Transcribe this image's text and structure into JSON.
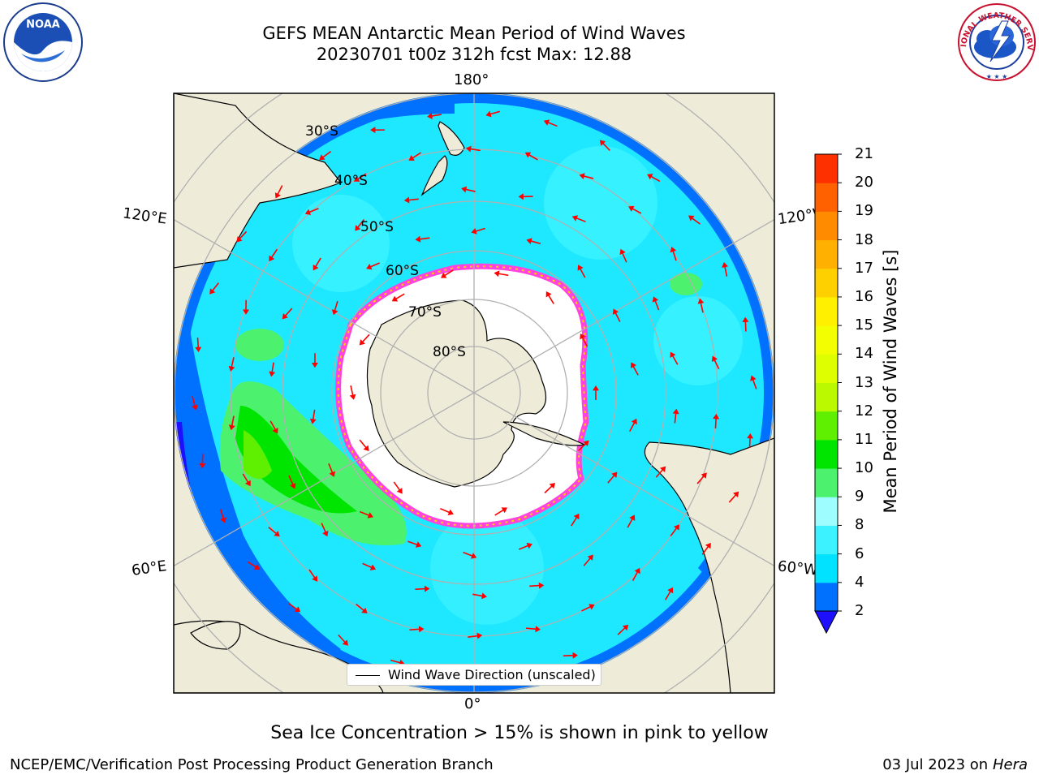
{
  "header": {
    "title_line1": "GEFS MEAN Antarctic Mean Period of Wind Waves",
    "title_line2": "20230701 t00z 312h fcst   Max: 12.88"
  },
  "logos": {
    "noaa": "NOAA",
    "noaa_ring_text": "NATIONAL OCEANIC AND ATMOSPHERIC ADMINISTRATION · U.S. DEPARTMENT OF COMMERCE",
    "nws_ring_text": "NATIONAL WEATHER SERVICE"
  },
  "map": {
    "projection": "south polar stereographic",
    "longitude_labels": {
      "top": "180°",
      "upper_left": "120°E",
      "upper_right": "120°W",
      "lower_left": "60°E",
      "lower_right": "60°W",
      "bottom": "0°"
    },
    "latitude_labels": [
      "30°S",
      "40°S",
      "50°S",
      "60°S",
      "70°S",
      "80°S"
    ],
    "legend_label": "Wind Wave Direction (unscaled)",
    "ocean_color": "#1ee8ff",
    "land_color": "#eeecd9",
    "ice_edge_color": "#ff44dd",
    "arrow_color": "#ff0000"
  },
  "colorbar": {
    "label": "Mean Period of Wind Waves [s]",
    "ticks": [
      "2",
      "4",
      "6",
      "8",
      "9",
      "10",
      "11",
      "12",
      "13",
      "14",
      "15",
      "16",
      "17",
      "18",
      "19",
      "20",
      "21"
    ],
    "colors": [
      "#0070ff",
      "#00e2ff",
      "#3cf2ff",
      "#9efdff",
      "#4cf26e",
      "#00e500",
      "#5fef00",
      "#bbf900",
      "#ddff00",
      "#f3ff00",
      "#fff000",
      "#ffd000",
      "#ffb000",
      "#ff8c00",
      "#ff6000",
      "#ff3000",
      "#ff0000"
    ],
    "extend_color": "#1e10ff"
  },
  "note": "Sea Ice Concentration > 15% is shown in pink to yellow",
  "footer": {
    "left": "NCEP/EMC/Verification Post Processing Product Generation Branch",
    "right_date": "03 Jul 2023 on ",
    "right_host": "Hera"
  }
}
